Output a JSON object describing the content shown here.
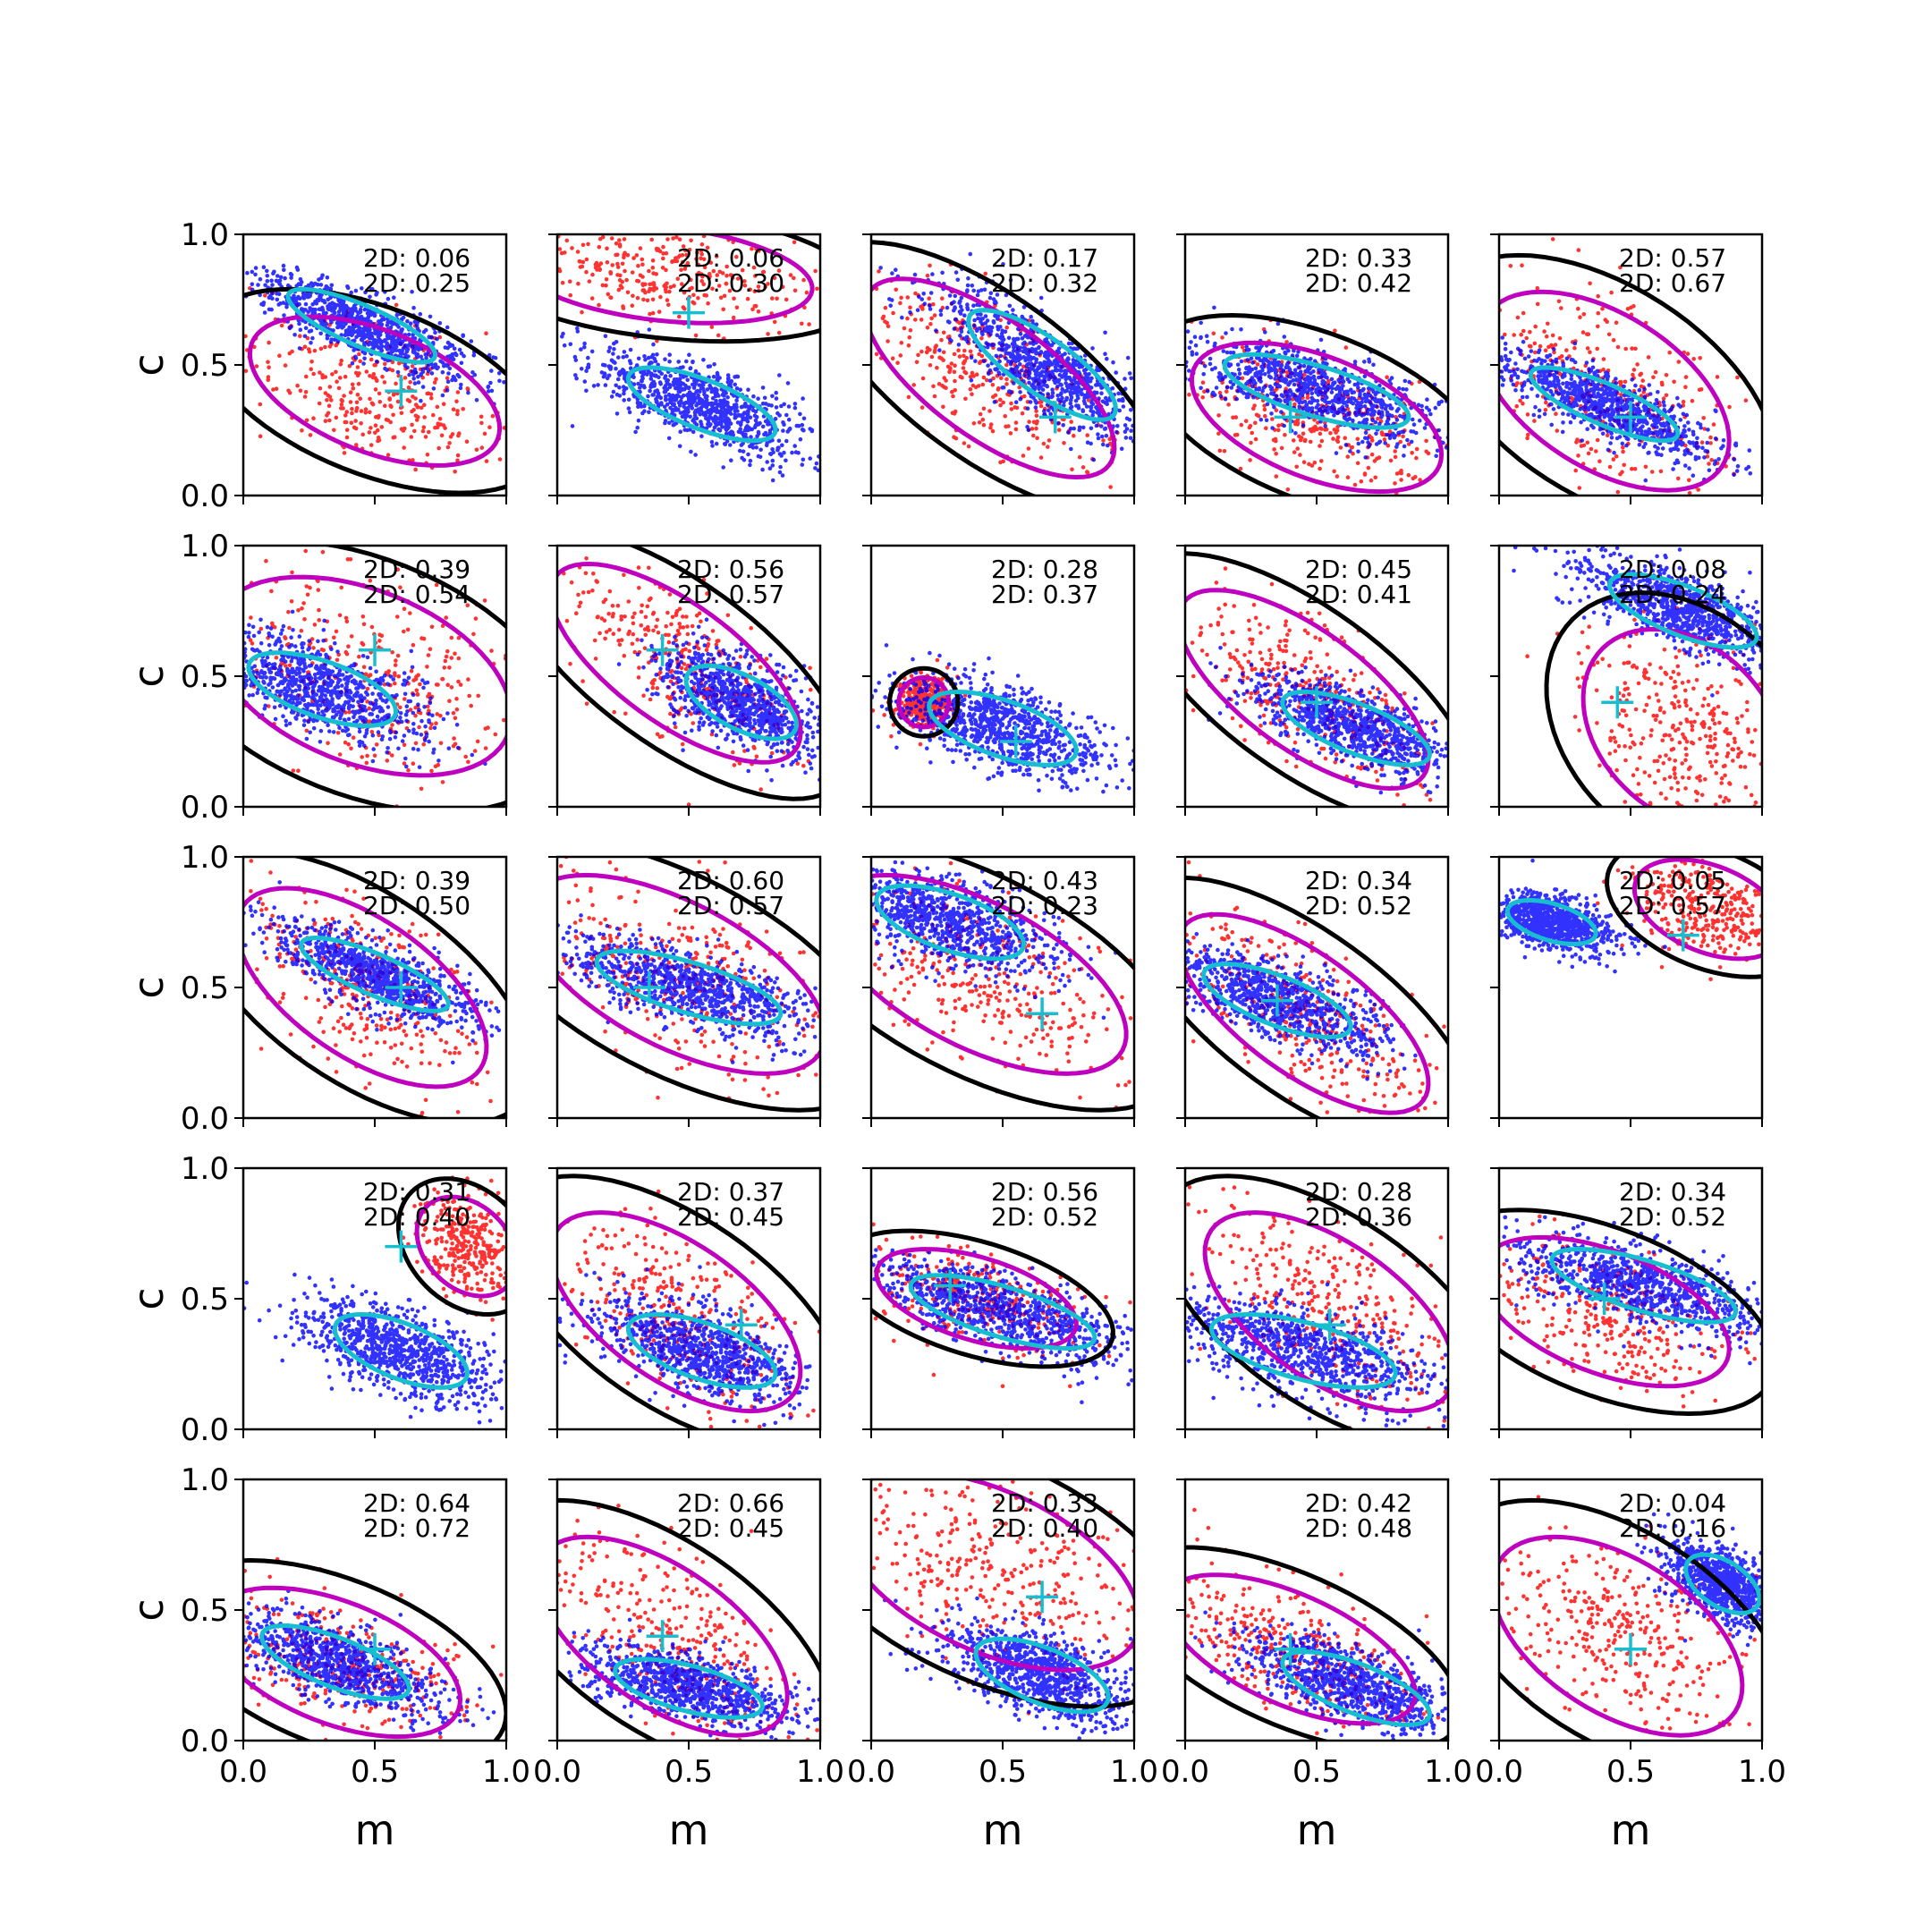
{
  "colors": {
    "black_contour": "#000000",
    "magenta_contour": "#bf00bf",
    "cyan_contour": "#17becf",
    "points_a": "#0000ff",
    "points_b": "#ff0000",
    "marker": "#17becf"
  },
  "chart_data": {
    "type": "scatter",
    "layout": {
      "rows": 5,
      "cols": 5
    },
    "xlabel": "m",
    "ylabel": "c",
    "xlim": [
      0,
      1
    ],
    "ylim": [
      0,
      1
    ],
    "xticks": [
      "0.0",
      "0.5",
      "1.0"
    ],
    "yticks": [
      "0.0",
      "0.5",
      "1.0"
    ],
    "stat_prefix": "2D: ",
    "panels": [
      {
        "s1": "0.06",
        "s2": "0.25",
        "marker": [
          0.6,
          0.4
        ],
        "blue": {
          "cx": 0.45,
          "cy": 0.65,
          "sx": 0.2,
          "sy": 0.1,
          "rho": -0.8
        },
        "red": {
          "cx": 0.5,
          "cy": 0.4,
          "sx": 0.25,
          "sy": 0.15,
          "rho": -0.5
        }
      },
      {
        "s1": "0.06",
        "s2": "0.30",
        "marker": [
          0.5,
          0.7
        ],
        "blue": {
          "cx": 0.55,
          "cy": 0.35,
          "sx": 0.2,
          "sy": 0.1,
          "rho": -0.7
        },
        "red": {
          "cx": 0.4,
          "cy": 0.85,
          "sx": 0.3,
          "sy": 0.1,
          "rho": -0.3
        }
      },
      {
        "s1": "0.17",
        "s2": "0.32",
        "marker": [
          0.7,
          0.3
        ],
        "blue": {
          "cx": 0.65,
          "cy": 0.5,
          "sx": 0.2,
          "sy": 0.15,
          "rho": -0.8
        },
        "red": {
          "cx": 0.45,
          "cy": 0.45,
          "sx": 0.25,
          "sy": 0.2,
          "rho": -0.7
        }
      },
      {
        "s1": "0.33",
        "s2": "0.42",
        "marker": [
          0.4,
          0.3
        ],
        "blue": {
          "cx": 0.5,
          "cy": 0.4,
          "sx": 0.25,
          "sy": 0.1,
          "rho": -0.7
        },
        "red": {
          "cx": 0.5,
          "cy": 0.3,
          "sx": 0.25,
          "sy": 0.15,
          "rho": -0.5
        }
      },
      {
        "s1": "0.57",
        "s2": "0.67",
        "marker": [
          0.5,
          0.3
        ],
        "blue": {
          "cx": 0.4,
          "cy": 0.35,
          "sx": 0.2,
          "sy": 0.1,
          "rho": -0.8
        },
        "red": {
          "cx": 0.4,
          "cy": 0.4,
          "sx": 0.25,
          "sy": 0.2,
          "rho": -0.5
        }
      },
      {
        "s1": "0.39",
        "s2": "0.54",
        "marker": [
          0.5,
          0.6
        ],
        "blue": {
          "cx": 0.3,
          "cy": 0.45,
          "sx": 0.2,
          "sy": 0.1,
          "rho": -0.6
        },
        "red": {
          "cx": 0.45,
          "cy": 0.5,
          "sx": 0.3,
          "sy": 0.2,
          "rho": -0.4
        }
      },
      {
        "s1": "0.56",
        "s2": "0.57",
        "marker": [
          0.4,
          0.6
        ],
        "blue": {
          "cx": 0.7,
          "cy": 0.4,
          "sx": 0.15,
          "sy": 0.1,
          "rho": -0.6
        },
        "red": {
          "cx": 0.45,
          "cy": 0.55,
          "sx": 0.25,
          "sy": 0.2,
          "rho": -0.7
        }
      },
      {
        "s1": "0.28",
        "s2": "0.37",
        "marker": [
          0.55,
          0.25
        ],
        "blue": {
          "cx": 0.5,
          "cy": 0.3,
          "sx": 0.2,
          "sy": 0.1,
          "rho": -0.6
        },
        "red": {
          "cx": 0.2,
          "cy": 0.4,
          "sx": 0.05,
          "sy": 0.05,
          "rho": 0.0
        }
      },
      {
        "s1": "0.45",
        "s2": "0.41",
        "marker": [
          0.5,
          0.4
        ],
        "blue": {
          "cx": 0.65,
          "cy": 0.3,
          "sx": 0.2,
          "sy": 0.1,
          "rho": -0.7
        },
        "red": {
          "cx": 0.45,
          "cy": 0.45,
          "sx": 0.25,
          "sy": 0.2,
          "rho": -0.7
        }
      },
      {
        "s1": "0.08",
        "s2": "0.24",
        "marker": [
          0.45,
          0.4
        ],
        "blue": {
          "cx": 0.7,
          "cy": 0.75,
          "sx": 0.2,
          "sy": 0.1,
          "rho": -0.7
        },
        "red": {
          "cx": 0.7,
          "cy": 0.3,
          "sx": 0.2,
          "sy": 0.2,
          "rho": -0.3
        }
      },
      {
        "s1": "0.39",
        "s2": "0.50",
        "marker": [
          0.6,
          0.5
        ],
        "blue": {
          "cx": 0.5,
          "cy": 0.55,
          "sx": 0.2,
          "sy": 0.1,
          "rho": -0.8
        },
        "red": {
          "cx": 0.45,
          "cy": 0.5,
          "sx": 0.25,
          "sy": 0.2,
          "rho": -0.6
        }
      },
      {
        "s1": "0.60",
        "s2": "0.57",
        "marker": [
          0.35,
          0.5
        ],
        "blue": {
          "cx": 0.5,
          "cy": 0.5,
          "sx": 0.25,
          "sy": 0.1,
          "rho": -0.7
        },
        "red": {
          "cx": 0.45,
          "cy": 0.55,
          "sx": 0.3,
          "sy": 0.2,
          "rho": -0.6
        }
      },
      {
        "s1": "0.43",
        "s2": "0.23",
        "marker": [
          0.65,
          0.4
        ],
        "blue": {
          "cx": 0.3,
          "cy": 0.75,
          "sx": 0.2,
          "sy": 0.1,
          "rho": -0.6
        },
        "red": {
          "cx": 0.4,
          "cy": 0.55,
          "sx": 0.3,
          "sy": 0.2,
          "rho": -0.6
        }
      },
      {
        "s1": "0.34",
        "s2": "0.52",
        "marker": [
          0.35,
          0.45
        ],
        "blue": {
          "cx": 0.35,
          "cy": 0.45,
          "sx": 0.2,
          "sy": 0.1,
          "rho": -0.7
        },
        "red": {
          "cx": 0.45,
          "cy": 0.4,
          "sx": 0.25,
          "sy": 0.2,
          "rho": -0.7
        }
      },
      {
        "s1": "0.05",
        "s2": "0.57",
        "marker": [
          0.7,
          0.7
        ],
        "blue": {
          "cx": 0.2,
          "cy": 0.75,
          "sx": 0.12,
          "sy": 0.06,
          "rho": -0.5
        },
        "red": {
          "cx": 0.8,
          "cy": 0.8,
          "sx": 0.15,
          "sy": 0.1,
          "rho": -0.4
        }
      },
      {
        "s1": "0.31",
        "s2": "0.40",
        "marker": [
          0.6,
          0.7
        ],
        "blue": {
          "cx": 0.6,
          "cy": 0.3,
          "sx": 0.18,
          "sy": 0.1,
          "rho": -0.6
        },
        "red": {
          "cx": 0.85,
          "cy": 0.7,
          "sx": 0.1,
          "sy": 0.1,
          "rho": -0.3
        }
      },
      {
        "s1": "0.37",
        "s2": "0.45",
        "marker": [
          0.7,
          0.4
        ],
        "blue": {
          "cx": 0.55,
          "cy": 0.3,
          "sx": 0.2,
          "sy": 0.1,
          "rho": -0.6
        },
        "red": {
          "cx": 0.45,
          "cy": 0.45,
          "sx": 0.25,
          "sy": 0.2,
          "rho": -0.6
        }
      },
      {
        "s1": "0.56",
        "s2": "0.52",
        "marker": [
          0.3,
          0.55
        ],
        "blue": {
          "cx": 0.5,
          "cy": 0.45,
          "sx": 0.25,
          "sy": 0.1,
          "rho": -0.7
        },
        "red": {
          "cx": 0.4,
          "cy": 0.5,
          "sx": 0.2,
          "sy": 0.1,
          "rho": -0.5
        }
      },
      {
        "s1": "0.28",
        "s2": "0.36",
        "marker": [
          0.55,
          0.4
        ],
        "blue": {
          "cx": 0.45,
          "cy": 0.3,
          "sx": 0.25,
          "sy": 0.1,
          "rho": -0.6
        },
        "red": {
          "cx": 0.55,
          "cy": 0.45,
          "sx": 0.25,
          "sy": 0.2,
          "rho": -0.6
        }
      },
      {
        "s1": "0.34",
        "s2": "0.52",
        "marker": [
          0.4,
          0.5
        ],
        "blue": {
          "cx": 0.55,
          "cy": 0.55,
          "sx": 0.25,
          "sy": 0.1,
          "rho": -0.7
        },
        "red": {
          "cx": 0.4,
          "cy": 0.45,
          "sx": 0.25,
          "sy": 0.15,
          "rho": -0.5
        }
      },
      {
        "s1": "0.64",
        "s2": "0.72",
        "marker": [
          0.5,
          0.35
        ],
        "blue": {
          "cx": 0.35,
          "cy": 0.3,
          "sx": 0.2,
          "sy": 0.1,
          "rho": -0.7
        },
        "red": {
          "cx": 0.35,
          "cy": 0.3,
          "sx": 0.25,
          "sy": 0.15,
          "rho": -0.5
        }
      },
      {
        "s1": "0.66",
        "s2": "0.45",
        "marker": [
          0.4,
          0.4
        ],
        "blue": {
          "cx": 0.5,
          "cy": 0.2,
          "sx": 0.2,
          "sy": 0.08,
          "rho": -0.6
        },
        "red": {
          "cx": 0.4,
          "cy": 0.4,
          "sx": 0.25,
          "sy": 0.2,
          "rho": -0.6
        }
      },
      {
        "s1": "0.33",
        "s2": "0.40",
        "marker": [
          0.65,
          0.55
        ],
        "blue": {
          "cx": 0.65,
          "cy": 0.25,
          "sx": 0.18,
          "sy": 0.1,
          "rho": -0.6
        },
        "red": {
          "cx": 0.45,
          "cy": 0.65,
          "sx": 0.3,
          "sy": 0.2,
          "rho": -0.5
        }
      },
      {
        "s1": "0.42",
        "s2": "0.48",
        "marker": [
          0.4,
          0.35
        ],
        "blue": {
          "cx": 0.65,
          "cy": 0.2,
          "sx": 0.2,
          "sy": 0.1,
          "rho": -0.7
        },
        "red": {
          "cx": 0.4,
          "cy": 0.35,
          "sx": 0.25,
          "sy": 0.15,
          "rho": -0.6
        }
      },
      {
        "s1": "0.04",
        "s2": "0.16",
        "marker": [
          0.5,
          0.35
        ],
        "blue": {
          "cx": 0.85,
          "cy": 0.6,
          "sx": 0.1,
          "sy": 0.08,
          "rho": -0.5
        },
        "red": {
          "cx": 0.45,
          "cy": 0.4,
          "sx": 0.25,
          "sy": 0.2,
          "rho": -0.5
        }
      }
    ]
  }
}
